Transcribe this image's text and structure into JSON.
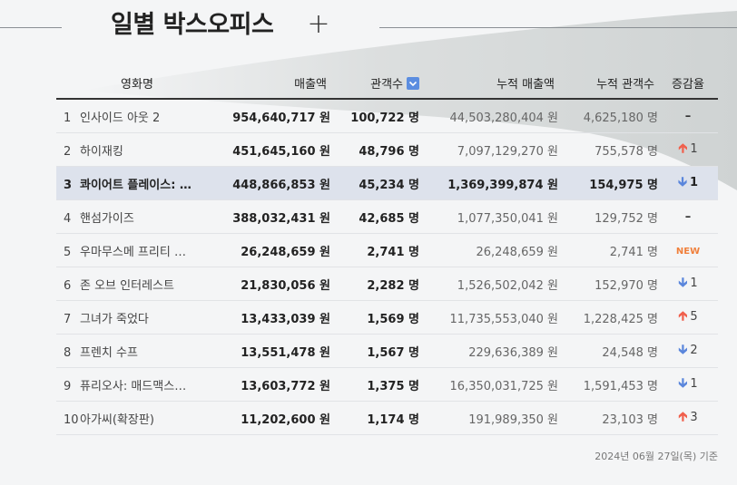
{
  "title": "일별 박스오피스",
  "add_label": "+",
  "columns": {
    "movie": "영화명",
    "sales": "매출액",
    "audience": "관객수",
    "acc_sales": "누적 매출액",
    "acc_audience": "누적 관객수",
    "change": "증감율"
  },
  "rows": [
    {
      "rank": "1",
      "title": "인사이드 아웃 2",
      "sales": "954,640,717 원",
      "audience": "100,722 명",
      "acc_sales": "44,503,280,404 원",
      "acc_audience": "4,625,180 명",
      "change": "",
      "change_type": "same"
    },
    {
      "rank": "2",
      "title": "하이재킹",
      "sales": "451,645,160 원",
      "audience": "48,796 명",
      "acc_sales": "7,097,129,270 원",
      "acc_audience": "755,578 명",
      "change": "1",
      "change_type": "up"
    },
    {
      "rank": "3",
      "title": "콰이어트 플레이스: …",
      "sales": "448,866,853 원",
      "audience": "45,234 명",
      "acc_sales": "1,369,399,874 원",
      "acc_audience": "154,975 명",
      "change": "1",
      "change_type": "down"
    },
    {
      "rank": "4",
      "title": "핸섬가이즈",
      "sales": "388,032,431 원",
      "audience": "42,685 명",
      "acc_sales": "1,077,350,041 원",
      "acc_audience": "129,752 명",
      "change": "",
      "change_type": "same"
    },
    {
      "rank": "5",
      "title": "우마무스메 프리티 …",
      "sales": "26,248,659 원",
      "audience": "2,741 명",
      "acc_sales": "26,248,659 원",
      "acc_audience": "2,741 명",
      "change": "NEW",
      "change_type": "new"
    },
    {
      "rank": "6",
      "title": "존 오브 인터레스트",
      "sales": "21,830,056 원",
      "audience": "2,282 명",
      "acc_sales": "1,526,502,042 원",
      "acc_audience": "152,970 명",
      "change": "1",
      "change_type": "down"
    },
    {
      "rank": "7",
      "title": "그녀가 죽었다",
      "sales": "13,433,039 원",
      "audience": "1,569 명",
      "acc_sales": "11,735,553,040 원",
      "acc_audience": "1,228,425 명",
      "change": "5",
      "change_type": "up"
    },
    {
      "rank": "8",
      "title": "프렌치 수프",
      "sales": "13,551,478 원",
      "audience": "1,567 명",
      "acc_sales": "229,636,389 원",
      "acc_audience": "24,548 명",
      "change": "2",
      "change_type": "down"
    },
    {
      "rank": "9",
      "title": "퓨리오사: 매드맥스…",
      "sales": "13,603,772 원",
      "audience": "1,375 명",
      "acc_sales": "16,350,031,725 원",
      "acc_audience": "1,591,453 명",
      "change": "1",
      "change_type": "down"
    },
    {
      "rank": "10",
      "title": "아가씨(확장판)",
      "sales": "11,202,600 원",
      "audience": "1,174 명",
      "acc_sales": "191,989,350 원",
      "acc_audience": "23,103 명",
      "change": "3",
      "change_type": "up"
    }
  ],
  "highlighted_rank": "3",
  "footer_date": "2024년 06월 27일(목) 기준",
  "colors": {
    "up": "#f0604d",
    "down": "#5a86dc",
    "new": "#f0803c",
    "highlight_row": "#dde2ec",
    "sort_icon": "#5b8de0"
  }
}
